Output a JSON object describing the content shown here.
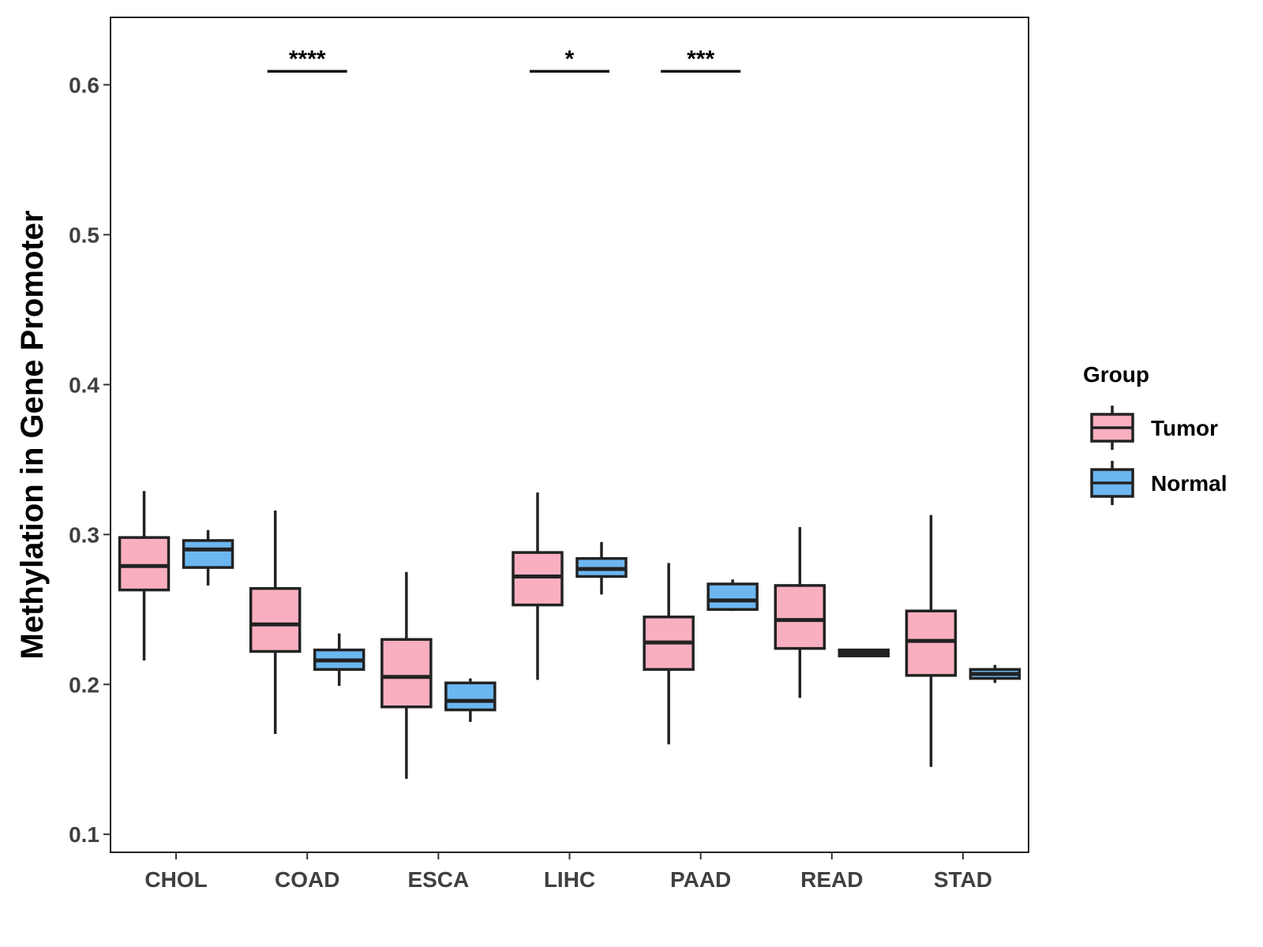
{
  "chart_data": {
    "type": "boxplot",
    "title": "",
    "xlabel": "",
    "ylabel": "Methylation in Gene Promoter",
    "ylim": [
      0.088,
      0.645
    ],
    "yticks": [
      0.1,
      0.2,
      0.3,
      0.4,
      0.5,
      0.6
    ],
    "ytick_labels": [
      "0.1",
      "0.2",
      "0.3",
      "0.4",
      "0.5",
      "0.6"
    ],
    "categories": [
      "CHOL",
      "COAD",
      "ESCA",
      "LIHC",
      "PAAD",
      "READ",
      "STAD"
    ],
    "legend": {
      "title": "Group",
      "position": "right",
      "entries": [
        {
          "name": "Tumor",
          "color": "#FAAFC0"
        },
        {
          "name": "Normal",
          "color": "#6CB7F0"
        }
      ]
    },
    "series": [
      {
        "name": "Tumor",
        "color": "#FAAFC0",
        "boxes": [
          {
            "category": "CHOL",
            "whisker_low": 0.216,
            "q1": 0.263,
            "median": 0.279,
            "q3": 0.298,
            "whisker_high": 0.329
          },
          {
            "category": "COAD",
            "whisker_low": 0.167,
            "q1": 0.222,
            "median": 0.24,
            "q3": 0.264,
            "whisker_high": 0.316
          },
          {
            "category": "ESCA",
            "whisker_low": 0.137,
            "q1": 0.185,
            "median": 0.205,
            "q3": 0.23,
            "whisker_high": 0.275
          },
          {
            "category": "LIHC",
            "whisker_low": 0.203,
            "q1": 0.253,
            "median": 0.272,
            "q3": 0.288,
            "whisker_high": 0.328
          },
          {
            "category": "PAAD",
            "whisker_low": 0.16,
            "q1": 0.21,
            "median": 0.228,
            "q3": 0.245,
            "whisker_high": 0.281
          },
          {
            "category": "READ",
            "whisker_low": 0.191,
            "q1": 0.224,
            "median": 0.243,
            "q3": 0.266,
            "whisker_high": 0.305
          },
          {
            "category": "STAD",
            "whisker_low": 0.145,
            "q1": 0.206,
            "median": 0.229,
            "q3": 0.249,
            "whisker_high": 0.313
          }
        ]
      },
      {
        "name": "Normal",
        "color": "#6CB7F0",
        "boxes": [
          {
            "category": "CHOL",
            "whisker_low": 0.266,
            "q1": 0.278,
            "median": 0.29,
            "q3": 0.296,
            "whisker_high": 0.303
          },
          {
            "category": "COAD",
            "whisker_low": 0.199,
            "q1": 0.21,
            "median": 0.216,
            "q3": 0.223,
            "whisker_high": 0.234
          },
          {
            "category": "ESCA",
            "whisker_low": 0.175,
            "q1": 0.183,
            "median": 0.189,
            "q3": 0.201,
            "whisker_high": 0.204
          },
          {
            "category": "LIHC",
            "whisker_low": 0.26,
            "q1": 0.272,
            "median": 0.277,
            "q3": 0.284,
            "whisker_high": 0.295
          },
          {
            "category": "PAAD",
            "whisker_low": 0.249,
            "q1": 0.25,
            "median": 0.256,
            "q3": 0.267,
            "whisker_high": 0.27
          },
          {
            "category": "READ",
            "whisker_low": 0.219,
            "q1": 0.219,
            "median": 0.221,
            "q3": 0.223,
            "whisker_high": 0.223
          },
          {
            "category": "STAD",
            "whisker_low": 0.201,
            "q1": 0.204,
            "median": 0.207,
            "q3": 0.21,
            "whisker_high": 0.213
          }
        ]
      }
    ],
    "significance": [
      {
        "category": "COAD",
        "label": "****",
        "y": 0.609
      },
      {
        "category": "LIHC",
        "label": "*",
        "y": 0.609
      },
      {
        "category": "PAAD",
        "label": "***",
        "y": 0.609
      }
    ]
  }
}
